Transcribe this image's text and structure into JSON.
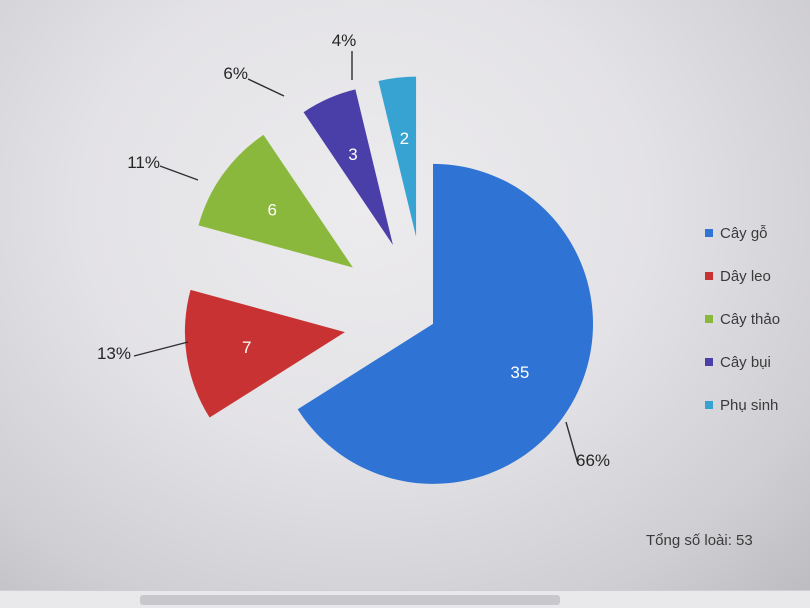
{
  "chart_data": {
    "type": "pie",
    "title": "",
    "categories": [
      "Cây gỗ",
      "Dây leo",
      "Cây thảo",
      "Cây bụi",
      "Phụ sinh"
    ],
    "values": [
      35,
      7,
      6,
      3,
      2
    ],
    "percent_labels": [
      "66%",
      "13%",
      "11%",
      "6%",
      "4%"
    ],
    "colors": [
      "#2f74d4",
      "#c83232",
      "#8ab83c",
      "#4a3fa8",
      "#37a3d2"
    ],
    "exploded": true,
    "legend_position": "right",
    "legend": [
      "Cây gỗ",
      "Dây leo",
      "Cây thảo",
      "Cây bụi",
      "Phụ sinh"
    ]
  },
  "total_note": "Tổng số loài: 53"
}
